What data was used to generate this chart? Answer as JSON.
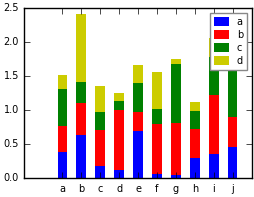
{
  "index": [
    "a",
    "b",
    "c",
    "d",
    "e",
    "f",
    "g",
    "h",
    "i",
    "j"
  ],
  "series": {
    "a": [
      0.38,
      0.64,
      0.18,
      0.12,
      0.7,
      0.06,
      0.05,
      0.29,
      0.35,
      0.46
    ],
    "b": [
      0.38,
      0.47,
      0.53,
      0.88,
      0.27,
      0.74,
      0.76,
      0.43,
      0.88,
      0.44
    ],
    "c": [
      0.55,
      0.3,
      0.27,
      0.13,
      0.43,
      0.22,
      0.87,
      0.27,
      0.56,
      0.88
    ],
    "d": [
      0.21,
      1.0,
      0.37,
      0.12,
      0.27,
      0.54,
      0.08,
      0.13,
      0.27,
      0.0
    ]
  },
  "colors": [
    "#0000ff",
    "#ff0000",
    "#008000",
    "#cccc00"
  ],
  "legend_labels": [
    "a",
    "b",
    "c",
    "d"
  ],
  "ylim": [
    0.0,
    2.5
  ],
  "yticks": [
    0.0,
    0.5,
    1.0,
    1.5,
    2.0,
    2.5
  ],
  "figsize": [
    2.55,
    1.97
  ],
  "dpi": 100,
  "axes_bg": "#ffffff",
  "fig_bg": "#ffffff",
  "bar_width": 0.5,
  "legend_loc": "upper right",
  "legend_fontsize": 7,
  "tick_fontsize": 7
}
